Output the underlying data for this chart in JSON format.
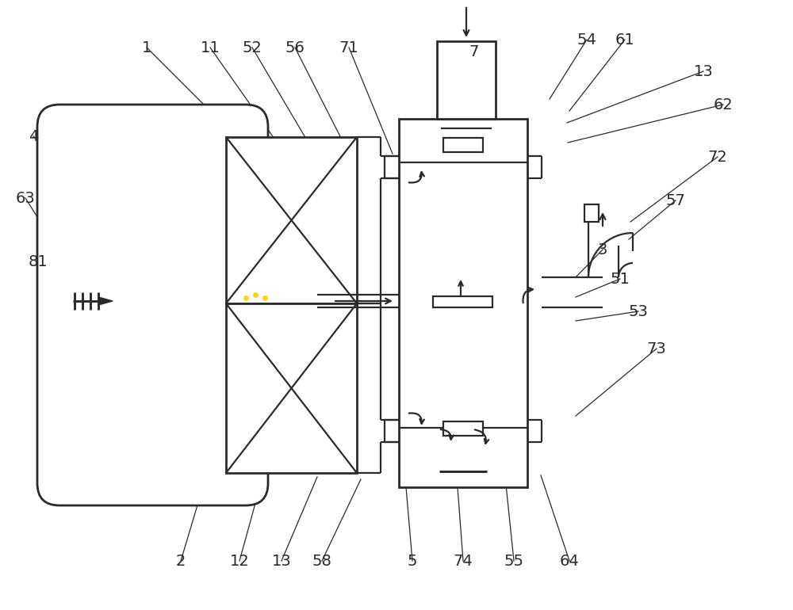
{
  "bg_color": "#ffffff",
  "line_color": "#2a2a2a",
  "lw": 1.6,
  "lw_thick": 2.0,
  "figsize": [
    10.0,
    7.7
  ],
  "dpi": 100,
  "label_fs": 14
}
